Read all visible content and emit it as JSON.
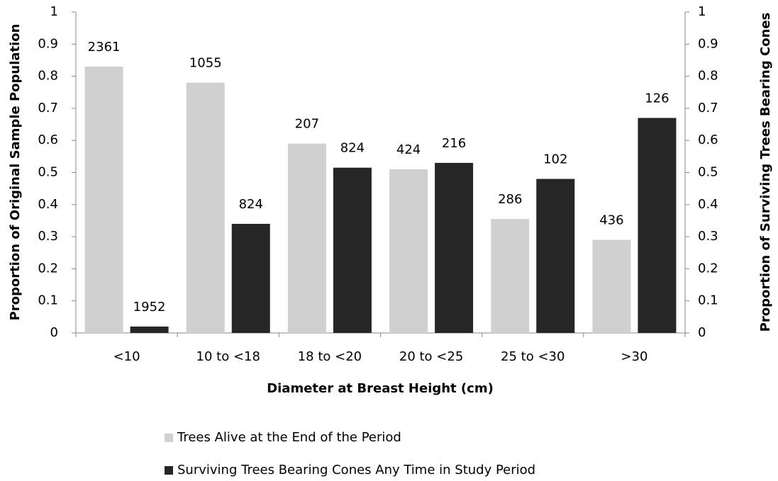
{
  "chart_data": {
    "type": "bar",
    "x_label": "Diameter at Breast Height (cm)",
    "y_label": "Proportion  of Original Sample Population",
    "y2_label": "Proportion of Surviving Trees Bearing Cones",
    "categories": [
      "<10",
      "10 to <18",
      "18 to <20",
      "20 to <25",
      "25 to <30",
      ">30"
    ],
    "series": [
      {
        "name": "Trees Alive at the End of the Period",
        "color": "#d0d0d0",
        "values": [
          0.83,
          0.78,
          0.59,
          0.51,
          0.355,
          0.29
        ],
        "point_labels": [
          2361,
          1055,
          207,
          424,
          286,
          436
        ]
      },
      {
        "name": "Surviving Trees Bearing Cones Any Time in Study Period",
        "color": "#262626",
        "axis": "y2",
        "values": [
          0.02,
          0.34,
          0.515,
          0.53,
          0.48,
          0.67
        ],
        "point_labels": [
          1952,
          824,
          824,
          216,
          102,
          126
        ]
      }
    ],
    "ylim": [
      0,
      1
    ],
    "yticks": [
      0,
      0.1,
      0.2,
      0.3,
      0.4,
      0.5,
      0.6,
      0.7,
      0.8,
      0.9,
      1
    ],
    "y2lim": [
      0,
      1
    ],
    "y2ticks": [
      0,
      0.1,
      0.2,
      0.3,
      0.4,
      0.5,
      0.6,
      0.7,
      0.8,
      0.9,
      1
    ],
    "legend": "bottom",
    "grid": false
  }
}
